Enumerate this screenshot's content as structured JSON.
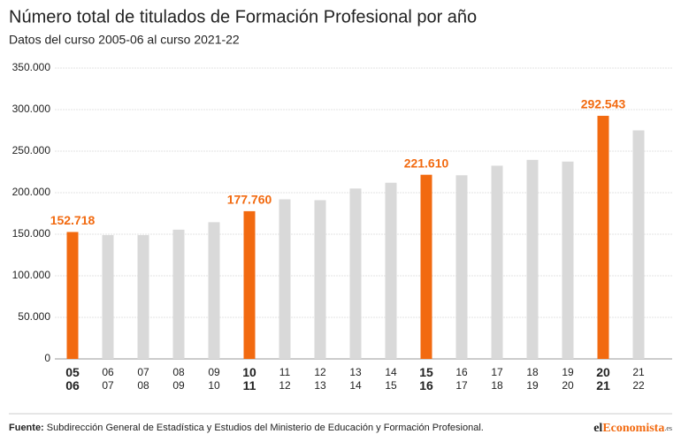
{
  "chart_data": {
    "type": "bar",
    "title": "Número total de titulados de Formación Profesional por año",
    "subtitle": "Datos del curso 2005-06 al curso 2021-22",
    "categories": [
      "05\n06",
      "06\n07",
      "07\n08",
      "08\n09",
      "09\n10",
      "10\n11",
      "11\n12",
      "12\n13",
      "13\n14",
      "14\n15",
      "15\n16",
      "16\n17",
      "17\n18",
      "18\n19",
      "19\n20",
      "20\n21",
      "21\n22"
    ],
    "values": [
      152718,
      149000,
      149000,
      155500,
      164500,
      177760,
      192000,
      191000,
      205000,
      212000,
      221610,
      221000,
      232500,
      239500,
      237500,
      292543,
      275000
    ],
    "value_labels": [
      "152.718",
      null,
      null,
      null,
      null,
      "177.760",
      null,
      null,
      null,
      null,
      "221.610",
      null,
      null,
      null,
      null,
      "292.543",
      null
    ],
    "colors": [
      "#f26a10",
      "#d9d9d9",
      "#d9d9d9",
      "#d9d9d9",
      "#d9d9d9",
      "#f26a10",
      "#d9d9d9",
      "#d9d9d9",
      "#d9d9d9",
      "#d9d9d9",
      "#f26a10",
      "#d9d9d9",
      "#d9d9d9",
      "#d9d9d9",
      "#d9d9d9",
      "#f26a10",
      "#d9d9d9"
    ],
    "ylim": [
      0,
      350000
    ],
    "yticks": [
      0,
      {
        "value": 50000,
        "label": "50.000"
      },
      {
        "value": 100000,
        "label": "100.000"
      },
      {
        "value": 150000,
        "label": "150.000"
      },
      {
        "value": 200000,
        "label": "200.000"
      },
      {
        "value": 250000,
        "label": "250.000"
      },
      {
        "value": 300000,
        "label": "300.000"
      },
      {
        "value": 350000,
        "label": "350.000"
      }
    ],
    "grid": true
  },
  "source": {
    "label": "Fuente:",
    "text": "Subdirección General de Estadística y Estudios del Ministerio de Educación y Formación Profesional."
  },
  "logo": [
    "el",
    "Economista",
    ".es"
  ]
}
